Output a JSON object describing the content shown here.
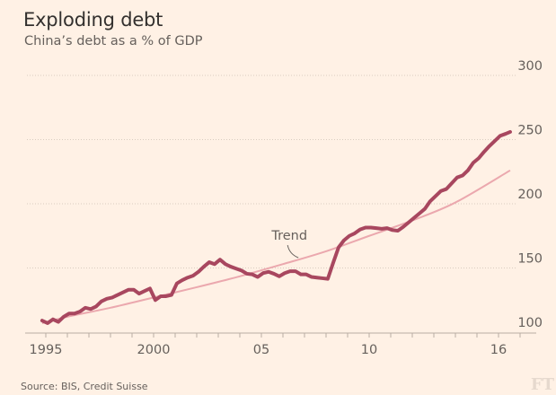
{
  "chart_data": {
    "type": "line",
    "title": "Exploding debt",
    "subtitle": "China’s debt as a % of GDP",
    "source": "Source: BIS, Credit Suisse",
    "logo": "FT",
    "xlabel": "",
    "ylabel": "",
    "xlim": [
      1994.6,
      2017.1
    ],
    "ylim": [
      100,
      300
    ],
    "y_ticks": [
      100,
      150,
      200,
      250,
      300
    ],
    "y_tick_labels": [
      "100",
      "150",
      "200",
      "250",
      "300"
    ],
    "x_ticks": [
      1995,
      2000,
      2005,
      2010,
      2016
    ],
    "x_tick_labels": [
      "1995",
      "2000",
      "05",
      "10",
      "16"
    ],
    "x_minor_ticks": [
      1995,
      1996,
      1997,
      1998,
      1999,
      2000,
      2001,
      2002,
      2003,
      2004,
      2005,
      2006,
      2007,
      2008,
      2009,
      2010,
      2011,
      2012,
      2013,
      2014,
      2015,
      2016,
      2017
    ],
    "grid": "horizontal-dotted",
    "annotation": {
      "text": "Trend",
      "x": 2006.3,
      "y": 172
    },
    "colors": {
      "background": "#fff1e5",
      "debt": "#a8475f",
      "trend": "#eba8ae",
      "grid": "#d9cbbf",
      "axis": "#b9ada3"
    },
    "series": [
      {
        "name": "Debt",
        "x": [
          1994.83,
          1995.08,
          1995.33,
          1995.58,
          1995.83,
          1996.08,
          1996.33,
          1996.58,
          1996.83,
          1997.08,
          1997.33,
          1997.58,
          1997.83,
          1998.08,
          1998.33,
          1998.58,
          1998.83,
          1999.08,
          1999.33,
          1999.58,
          1999.83,
          2000.08,
          2000.33,
          2000.58,
          2000.83,
          2001.08,
          2001.33,
          2001.58,
          2001.83,
          2002.08,
          2002.33,
          2002.58,
          2002.83,
          2003.08,
          2003.33,
          2003.58,
          2003.83,
          2004.08,
          2004.33,
          2004.58,
          2004.83,
          2005.08,
          2005.33,
          2005.58,
          2005.83,
          2006.08,
          2006.33,
          2006.58,
          2006.83,
          2007.08,
          2007.33,
          2007.58,
          2007.83,
          2008.08,
          2008.33,
          2008.58,
          2008.83,
          2009.08,
          2009.33,
          2009.58,
          2009.83,
          2010.08,
          2010.33,
          2010.58,
          2010.83,
          2011.08,
          2011.33,
          2011.58,
          2011.83,
          2012.08,
          2012.33,
          2012.58,
          2012.83,
          2013.08,
          2013.33,
          2013.58,
          2013.83,
          2014.08,
          2014.33,
          2014.58,
          2014.83,
          2015.08,
          2015.33,
          2015.58,
          2015.83,
          2016.08,
          2016.33,
          2016.54
        ],
        "values": [
          109,
          107,
          110,
          108,
          112,
          114.5,
          114.5,
          116,
          119,
          118,
          120,
          124,
          126,
          127,
          129,
          131,
          133,
          133,
          130,
          132,
          134,
          125,
          128,
          128,
          129,
          138,
          140.5,
          142.5,
          144,
          147,
          151,
          154.5,
          153,
          156.5,
          153,
          151,
          149.5,
          148,
          145.5,
          145,
          143,
          146,
          147,
          145.5,
          143.5,
          146,
          147.5,
          147.5,
          145,
          145,
          143,
          142.5,
          142,
          141.5,
          154,
          166,
          171.5,
          175,
          177,
          180,
          181.5,
          181.5,
          181,
          180.5,
          181,
          179.5,
          179,
          182,
          185.5,
          189,
          192.5,
          196,
          202,
          206,
          210,
          211.5,
          216,
          220.5,
          222,
          226,
          232,
          235.5,
          240.5,
          245,
          249,
          253,
          254.5,
          256
        ]
      },
      {
        "name": "Trend",
        "x": [
          1994.83,
          1996,
          1998,
          2000,
          2002,
          2004,
          2006,
          2008,
          2010,
          2012,
          2014,
          2016.54
        ],
        "values": [
          107,
          112,
          119,
          127,
          135,
          143.5,
          153,
          163,
          175,
          187,
          201,
          226
        ]
      }
    ]
  }
}
